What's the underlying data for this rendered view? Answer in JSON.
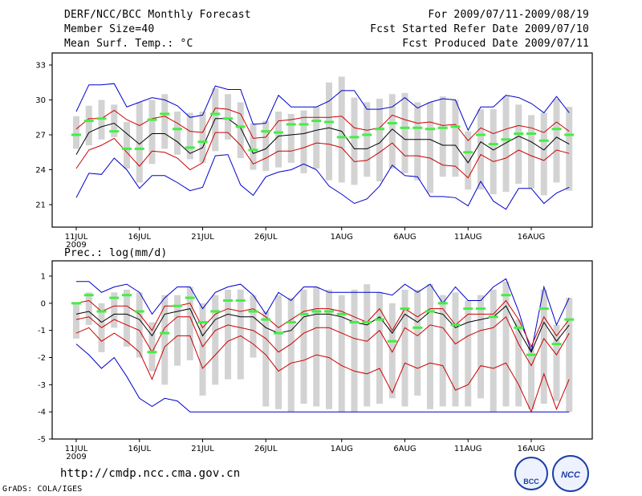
{
  "header": {
    "title": "DERF/NCC/BCC Monthly Forecast",
    "member_size": "Member Size=40",
    "variable": "Mean Surf. Temp.: °C",
    "period": "For 2009/07/11-2009/08/19",
    "refer_date": "Fcst Started Refer Date 2009/07/10",
    "produced_date": "Fcst Produced Date 2009/07/11"
  },
  "precip_label": "Prec.: log(mm/d)",
  "url": "http://cmdp.ncc.cma.gov.cn",
  "credit": "GrADS: COLA/IGES",
  "logos": [
    "BCC",
    "NCC"
  ],
  "colors": {
    "max_min": "#0000cc",
    "spread": "#cc0000",
    "mean": "#000000",
    "median": "#44ee44",
    "box": "#d3d3d3"
  },
  "chart_data": [
    {
      "type": "box-line",
      "name": "temperature",
      "ylabel": "Mean Surf. Temp.: °C",
      "ylim": [
        19,
        34
      ],
      "yticks": [
        21,
        24,
        27,
        30,
        33
      ],
      "xticks": [
        {
          "day": 0,
          "label": "11JUL",
          "sub": "2009"
        },
        {
          "day": 5,
          "label": "16JUL"
        },
        {
          "day": 10,
          "label": "21JUL"
        },
        {
          "day": 15,
          "label": "26JUL"
        },
        {
          "day": 21,
          "label": "1AUG"
        },
        {
          "day": 26,
          "label": "6AUG"
        },
        {
          "day": 31,
          "label": "11AUG"
        },
        {
          "day": 36,
          "label": "16AUG"
        }
      ],
      "max": [
        29.0,
        31.3,
        31.3,
        31.4,
        29.4,
        29.8,
        30.2,
        30.0,
        29.5,
        28.5,
        28.7,
        31.2,
        30.9,
        30.9,
        27.9,
        28.0,
        30.4,
        29.4,
        29.4,
        29.4,
        29.9,
        30.8,
        30.8,
        29.2,
        29.2,
        29.4,
        30.2,
        29.3,
        29.8,
        30.1,
        30.0,
        27.4,
        29.4,
        29.4,
        30.4,
        30.2,
        29.7,
        28.9,
        30.3,
        28.9
      ],
      "min": [
        21.6,
        23.7,
        23.6,
        25.0,
        24.0,
        22.4,
        23.5,
        23.5,
        22.9,
        22.2,
        22.5,
        25.2,
        25.3,
        22.7,
        21.8,
        23.4,
        23.8,
        24.0,
        24.5,
        24.0,
        22.6,
        21.9,
        21.1,
        21.5,
        22.6,
        24.4,
        23.5,
        23.4,
        21.7,
        21.7,
        21.6,
        20.9,
        23.0,
        21.3,
        20.6,
        22.4,
        22.4,
        21.1,
        22.0,
        22.5
      ],
      "upper": [
        27.5,
        28.4,
        28.4,
        29.1,
        28.3,
        27.8,
        28.4,
        28.6,
        28.0,
        27.3,
        27.2,
        29.3,
        29.2,
        28.8,
        26.7,
        26.8,
        28.2,
        28.3,
        28.5,
        28.5,
        28.5,
        28.6,
        27.6,
        27.4,
        27.6,
        28.7,
        28.3,
        28.0,
        28.1,
        27.8,
        27.9,
        26.5,
        27.6,
        27.1,
        27.5,
        27.8,
        27.6,
        27.2,
        28.1,
        27.3
      ],
      "mean": [
        25.3,
        27.2,
        27.7,
        28.0,
        27.1,
        26.2,
        27.1,
        27.1,
        26.4,
        25.4,
        25.9,
        28.4,
        28.4,
        27.6,
        25.4,
        25.8,
        26.9,
        27.0,
        27.1,
        27.4,
        27.6,
        27.3,
        25.8,
        25.8,
        26.3,
        27.5,
        26.6,
        26.6,
        26.6,
        26.1,
        26.1,
        24.6,
        26.4,
        25.7,
        26.3,
        26.9,
        26.4,
        25.7,
        26.8,
        26.2
      ],
      "lower": [
        24.1,
        25.7,
        26.1,
        26.7,
        25.5,
        24.3,
        25.6,
        25.5,
        25.0,
        24.0,
        24.6,
        27.2,
        27.2,
        26.1,
        24.5,
        25.0,
        25.6,
        25.6,
        25.9,
        26.3,
        26.2,
        25.9,
        24.7,
        24.8,
        25.5,
        26.3,
        25.2,
        25.2,
        25.0,
        24.4,
        24.3,
        23.3,
        25.3,
        24.7,
        25.0,
        25.7,
        25.2,
        24.8,
        25.7,
        25.4
      ],
      "median": [
        27.0,
        28.2,
        28.4,
        27.3,
        25.8,
        25.8,
        28.3,
        28.8,
        27.5,
        25.9,
        26.4,
        28.8,
        28.4,
        27.7,
        25.7,
        27.3,
        27.2,
        27.9,
        27.9,
        28.2,
        28.1,
        26.8,
        26.8,
        27.0,
        27.5,
        28.0,
        27.6,
        27.6,
        27.5,
        27.6,
        27.7,
        25.5,
        27.0,
        26.2,
        26.6,
        27.1,
        27.1,
        26.5,
        27.5,
        27.0
      ],
      "box_top": [
        28.6,
        29.5,
        30.0,
        29.6,
        28.1,
        29.8,
        30.0,
        30.5,
        29.0,
        28.9,
        29.0,
        31.0,
        30.5,
        29.8,
        28.0,
        28.2,
        29.0,
        28.8,
        29.1,
        29.4,
        31.5,
        32.0,
        30.2,
        29.8,
        30.1,
        30.5,
        30.6,
        29.8,
        29.8,
        30.3,
        30.0,
        27.3,
        29.2,
        29.2,
        30.3,
        29.6,
        28.7,
        28.9,
        30.1,
        29.4
      ],
      "box_bot": [
        25.8,
        26.1,
        26.6,
        26.8,
        24.1,
        22.9,
        24.5,
        25.8,
        25.3,
        24.9,
        24.6,
        25.6,
        26.6,
        25.0,
        24.0,
        23.9,
        24.2,
        24.6,
        23.7,
        24.1,
        23.1,
        22.9,
        22.7,
        23.4,
        23.0,
        24.1,
        23.7,
        23.1,
        22.0,
        23.4,
        23.4,
        22.3,
        22.3,
        21.9,
        22.1,
        22.8,
        22.4,
        21.8,
        22.9,
        22.2
      ]
    },
    {
      "type": "box-line",
      "name": "precipitation",
      "ylabel": "Prec.: log(mm/d)",
      "ylim": [
        -5,
        1.3
      ],
      "yticks": [
        -5,
        -4,
        -3,
        -2,
        -1,
        0,
        1
      ],
      "xticks": [
        {
          "day": 0,
          "label": "11JUL",
          "sub": "2009"
        },
        {
          "day": 5,
          "label": "16JUL"
        },
        {
          "day": 10,
          "label": "21JUL"
        },
        {
          "day": 15,
          "label": "26JUL"
        },
        {
          "day": 21,
          "label": "1AUG"
        },
        {
          "day": 26,
          "label": "6AUG"
        },
        {
          "day": 31,
          "label": "11AUG"
        },
        {
          "day": 36,
          "label": "16AUG"
        }
      ],
      "max": [
        0.8,
        0.8,
        0.4,
        0.6,
        0.7,
        0.4,
        -0.4,
        0.2,
        0.6,
        0.6,
        -0.2,
        0.4,
        0.6,
        0.7,
        0.3,
        -0.4,
        0.4,
        0.1,
        0.6,
        0.6,
        0.4,
        0.4,
        0.4,
        0.4,
        0.4,
        0.3,
        0.7,
        0.4,
        0.7,
        0.0,
        0.6,
        0.1,
        0.1,
        0.6,
        0.9,
        -0.3,
        -1.8,
        0.6,
        -0.8,
        0.2
      ],
      "min": [
        -1.5,
        -1.9,
        -2.4,
        -2.0,
        -2.7,
        -3.5,
        -3.8,
        -3.5,
        -3.6,
        -4.0,
        -4.0,
        -4.0,
        -4.0,
        -4.0,
        -4.0,
        -4.0,
        -4.0,
        -4.0,
        -4.0,
        -4.0,
        -4.0,
        -4.0,
        -4.0,
        -4.0,
        -4.0,
        -4.0,
        -4.0,
        -4.0,
        -4.0,
        -4.0,
        -4.0,
        -4.0,
        -4.0,
        -4.0,
        -4.0,
        -4.0,
        -4.0,
        -4.0,
        -4.0,
        -4.0
      ],
      "upper": [
        0.0,
        0.1,
        -0.3,
        -0.1,
        -0.1,
        -0.4,
        -1.0,
        -0.1,
        -0.1,
        0.0,
        -0.9,
        -0.4,
        -0.2,
        -0.3,
        -0.2,
        -0.5,
        -0.9,
        -0.6,
        -0.3,
        -0.2,
        -0.2,
        -0.3,
        -0.5,
        -0.7,
        -0.2,
        -1.0,
        -0.2,
        -0.5,
        -0.2,
        -0.2,
        -0.8,
        -0.4,
        -0.4,
        -0.4,
        0.1,
        -0.6,
        -1.6,
        -0.5,
        -1.2,
        -0.6
      ],
      "mean": [
        -0.4,
        -0.3,
        -0.7,
        -0.4,
        -0.4,
        -0.6,
        -1.2,
        -0.4,
        -0.3,
        -0.2,
        -1.2,
        -0.6,
        -0.4,
        -0.5,
        -0.5,
        -0.9,
        -1.1,
        -1.0,
        -0.5,
        -0.4,
        -0.4,
        -0.5,
        -0.7,
        -0.8,
        -0.5,
        -1.1,
        -0.4,
        -0.7,
        -0.3,
        -0.4,
        -0.9,
        -0.7,
        -0.6,
        -0.5,
        -0.1,
        -1.0,
        -1.8,
        -0.7,
        -1.4,
        -0.8
      ],
      "lower": [
        -0.6,
        -0.5,
        -0.9,
        -0.6,
        -0.8,
        -1.0,
        -1.8,
        -0.9,
        -0.5,
        -0.5,
        -1.6,
        -1.0,
        -0.8,
        -0.9,
        -1.0,
        -1.3,
        -1.8,
        -1.5,
        -1.1,
        -0.9,
        -0.9,
        -1.1,
        -1.3,
        -1.4,
        -1.0,
        -1.8,
        -0.9,
        -1.2,
        -0.8,
        -0.9,
        -1.5,
        -1.2,
        -1.0,
        -0.9,
        -0.5,
        -1.5,
        -2.3,
        -1.3,
        -1.9,
        -1.1
      ],
      "lower2": [
        -1.1,
        -0.9,
        -1.4,
        -1.1,
        -1.4,
        -1.8,
        -2.8,
        -1.6,
        -1.2,
        -1.2,
        -2.4,
        -1.9,
        -1.4,
        -1.2,
        -1.5,
        -1.9,
        -2.5,
        -2.2,
        -2.1,
        -1.9,
        -2.0,
        -2.3,
        -2.5,
        -2.6,
        -2.4,
        -3.3,
        -2.2,
        -2.4,
        -2.2,
        -2.3,
        -3.2,
        -3.0,
        -2.3,
        -2.4,
        -2.2,
        -3.0,
        -4.0,
        -2.6,
        -3.9,
        -2.8
      ],
      "median": [
        0.0,
        0.3,
        -0.3,
        0.2,
        0.3,
        -0.3,
        -1.8,
        -1.1,
        -0.1,
        0.2,
        -0.7,
        -0.3,
        0.1,
        0.1,
        -0.3,
        -0.6,
        -1.1,
        -0.7,
        -0.4,
        -0.3,
        -0.3,
        -0.4,
        -0.7,
        -0.7,
        -0.6,
        -1.4,
        -0.2,
        -0.9,
        -0.3,
        0.0,
        -0.8,
        -0.2,
        -0.2,
        -0.5,
        0.3,
        -0.9,
        -1.9,
        -0.2,
        -1.5,
        -0.6
      ],
      "box_top": [
        0.0,
        0.4,
        0.0,
        0.4,
        0.5,
        0.4,
        -0.7,
        0.3,
        0.3,
        0.6,
        0.0,
        0.3,
        0.5,
        0.5,
        0.3,
        -0.3,
        0.3,
        0.2,
        0.5,
        0.6,
        0.5,
        0.3,
        0.5,
        0.7,
        0.4,
        0.0,
        0.5,
        0.5,
        0.7,
        0.3,
        0.4,
        0.1,
        0.3,
        0.5,
        0.8,
        -0.6,
        -1.6,
        0.5,
        -0.8,
        0.2
      ],
      "box_bot": [
        -1.3,
        -0.8,
        -1.8,
        -0.9,
        -1.6,
        -2.0,
        -2.5,
        -3.0,
        -2.3,
        -2.1,
        -3.4,
        -3.0,
        -2.8,
        -2.8,
        -2.0,
        -3.8,
        -3.9,
        -4.0,
        -3.7,
        -3.8,
        -3.9,
        -4.0,
        -4.0,
        -3.8,
        -3.7,
        -3.5,
        -3.8,
        -3.4,
        -3.9,
        -3.8,
        -3.8,
        -3.8,
        -3.5,
        -4.0,
        -3.8,
        -3.8,
        -3.9,
        -3.7,
        -3.6,
        -4.0
      ]
    }
  ]
}
